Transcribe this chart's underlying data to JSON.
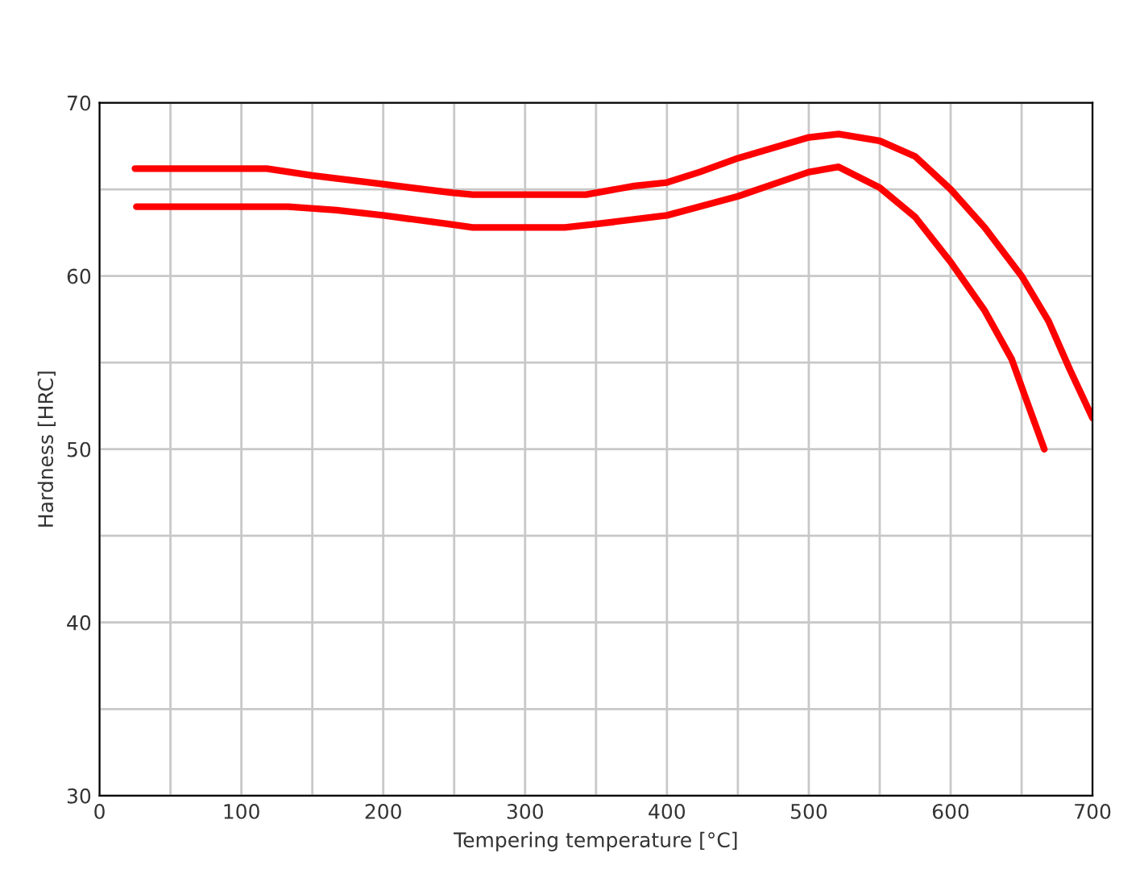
{
  "chart_data": {
    "type": "line",
    "xlabel": "Tempering temperature [°C]",
    "ylabel": "Hardness [HRC]",
    "xlim": [
      0,
      700
    ],
    "ylim": [
      30,
      70
    ],
    "xticks": [
      0,
      {
        "value": 50,
        "label": null
      },
      100,
      {
        "value": 150,
        "label": null
      },
      200,
      {
        "value": 250,
        "label": null
      },
      300,
      {
        "value": 350,
        "label": null
      },
      400,
      {
        "value": 450,
        "label": null
      },
      500,
      {
        "value": 550,
        "label": null
      },
      600,
      {
        "value": 650,
        "label": null
      },
      700
    ],
    "yticks": [
      30,
      {
        "value": 35,
        "label": null
      },
      40,
      {
        "value": 45,
        "label": null
      },
      50,
      {
        "value": 55,
        "label": null
      },
      60,
      {
        "value": 65,
        "label": null
      },
      70
    ],
    "grid": true,
    "legend": false,
    "marker": "none",
    "line_style": "solid",
    "series": [
      {
        "color": "#ff0000",
        "x": [
          25,
          118,
          150,
          200,
          249,
          263,
          343,
          377,
          400,
          423,
          450,
          475,
          500,
          521,
          550,
          575,
          600,
          624,
          650,
          669,
          684,
          700
        ],
        "values": [
          66.2,
          66.2,
          65.8,
          65.3,
          64.8,
          64.7,
          64.7,
          65.2,
          65.4,
          66.0,
          66.8,
          67.4,
          68.0,
          68.2,
          67.8,
          66.9,
          65.0,
          62.8,
          60.0,
          57.4,
          54.6,
          51.8
        ]
      },
      {
        "color": "#ff0000",
        "x": [
          26,
          133,
          167,
          200,
          246,
          263,
          328,
          350,
          400,
          450,
          475,
          500,
          521,
          550,
          575,
          600,
          624,
          643,
          654,
          666
        ],
        "values": [
          64.0,
          64.0,
          63.8,
          63.5,
          63.0,
          62.8,
          62.8,
          63.0,
          63.5,
          64.6,
          65.3,
          66.0,
          66.3,
          65.1,
          63.4,
          60.8,
          58.0,
          55.2,
          52.7,
          50.0
        ]
      }
    ]
  }
}
